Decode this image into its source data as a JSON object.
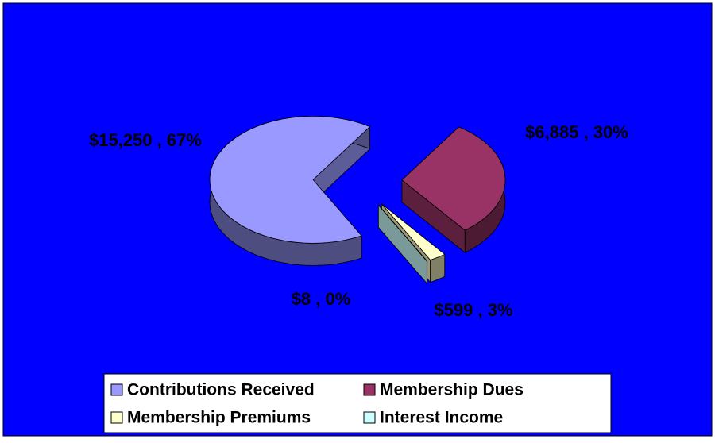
{
  "chart_data": {
    "type": "pie3d",
    "categories": [
      "Contributions Received",
      "Membership Dues",
      "Membership Premiums",
      "Interest Income"
    ],
    "values": [
      15250,
      6885,
      599,
      8
    ],
    "value_labels": [
      "$15,250 , 67%",
      "$6,885 , 30%",
      "$599 , 3%",
      "$8 , 0%"
    ],
    "colors": [
      "#9999ff",
      "#993366",
      "#ffffcc",
      "#ccffff"
    ],
    "background": "#0000ff",
    "legend": "bottom"
  }
}
